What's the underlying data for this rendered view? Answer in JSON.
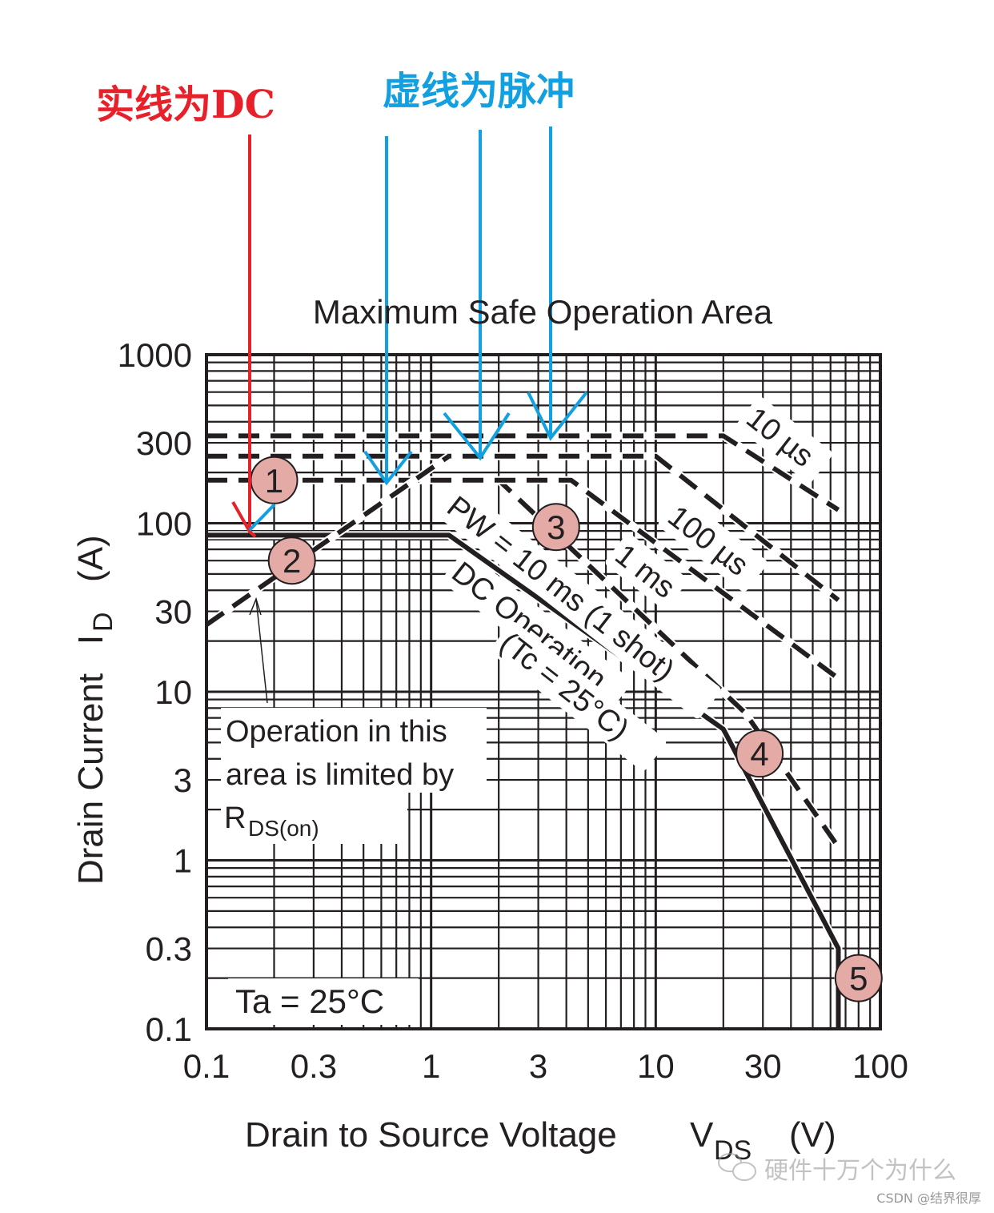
{
  "annotations": {
    "solid_label": "实线为DC",
    "dashed_label": "虚线为脉冲",
    "solid_color": "#e8202a",
    "dashed_color": "#12a0e0"
  },
  "watermark": {
    "wechat_text": "硬件十万个为什么",
    "csdn_text": "CSDN @结界很厚"
  },
  "chart_data": {
    "type": "line",
    "title": "Maximum Safe Operation Area",
    "xlabel": "Drain to Source Voltage",
    "xlabel_symbol": "V",
    "xlabel_sub": "DS",
    "xlabel_unit": "(V)",
    "ylabel": "Drain Current",
    "ylabel_symbol": "I",
    "ylabel_sub": "D",
    "ylabel_unit": "(A)",
    "xscale": "log",
    "yscale": "log",
    "xlim": [
      0.1,
      100
    ],
    "ylim": [
      0.1,
      1000
    ],
    "x_ticks": [
      "0.1",
      "0.3",
      "1",
      "3",
      "10",
      "30",
      "100"
    ],
    "y_ticks": [
      "1000",
      "300",
      "100",
      "30",
      "10",
      "3",
      "1",
      "0.3",
      "0.1"
    ],
    "grid": true,
    "condition": "Ta = 25°C",
    "rds_note": {
      "line1": "Operation in this",
      "line2": "area is limited by",
      "line3_main": "R",
      "line3_sub": "DS(on)"
    },
    "series": [
      {
        "name": "DC Operation (Tc = 25°C)",
        "label_line1": "DC Operation",
        "label_line2": "(Tc = 25°C)",
        "style": "solid",
        "points": [
          [
            0.1,
            85
          ],
          [
            1.2,
            85
          ],
          [
            20,
            6
          ],
          [
            65,
            0.3
          ],
          [
            65,
            0.1
          ]
        ]
      },
      {
        "name": "PW = 10 ms (1 shot)",
        "label": "PW = 10 ms (1 shot)",
        "style": "dashed",
        "points": [
          [
            0.1,
            180
          ],
          [
            2.0,
            180
          ],
          [
            25,
            7.5
          ],
          [
            65,
            1.2
          ]
        ]
      },
      {
        "name": "1 ms",
        "label": "1 ms",
        "style": "dashed",
        "points": [
          [
            0.1,
            180
          ],
          [
            4.2,
            180
          ],
          [
            65,
            12
          ]
        ]
      },
      {
        "name": "100 µs",
        "label": "100 µs",
        "style": "dashed",
        "points": [
          [
            0.1,
            250
          ],
          [
            10,
            250
          ],
          [
            65,
            35
          ]
        ]
      },
      {
        "name": "10 µs",
        "label": "10 µs",
        "style": "dashed",
        "points": [
          [
            0.1,
            330
          ],
          [
            20,
            330
          ],
          [
            65,
            120
          ]
        ]
      },
      {
        "name": "RDS(on) limit",
        "style": "dashed",
        "points": [
          [
            0.1,
            25
          ],
          [
            1.2,
            250
          ]
        ]
      }
    ],
    "markers": [
      {
        "label": "1",
        "x": 0.2,
        "y": 180
      },
      {
        "label": "2",
        "x": 0.24,
        "y": 60
      },
      {
        "label": "3",
        "x": 3.6,
        "y": 95
      },
      {
        "label": "4",
        "x": 29,
        "y": 4.3
      },
      {
        "label": "5",
        "x": 80,
        "y": 0.2
      }
    ],
    "marker_color": "#e3aaa6"
  }
}
